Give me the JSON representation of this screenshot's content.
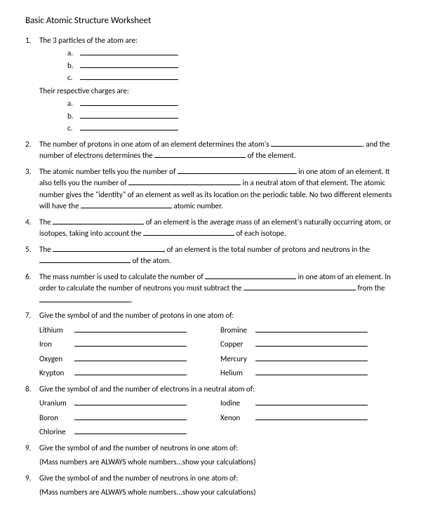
{
  "title": "Basic Atomic Structure Worksheet",
  "q1": {
    "text": "The 3 particles of the atom are:",
    "letters": [
      "a.",
      "b.",
      "c."
    ],
    "text2": "Their respective charges are:"
  },
  "q2": {
    "pre": "The number of protons in one atom of an element determines the atom's ",
    "mid": ", and the number of electrons determines the ",
    "post": " of the element."
  },
  "q3": {
    "a": "The atomic number tells you the number of ",
    "b": " in one atom of an element.  It also tells you the number of ",
    "c": " in a neutral atom of that element.  The atomic number gives the \"identity\" of an element as well as its location on the periodic table.  No two different elements will have the ",
    "d": " atomic number."
  },
  "q4": {
    "a": "The ",
    "b": " of an element is the average mass of an element's naturally occurring atom, or isotopes, taking into account the ",
    "c": " of each isotope."
  },
  "q5": {
    "a": "The ",
    "b": " of an element is the total number of protons and neutrons in the ",
    "c": " of the atom."
  },
  "q6": {
    "a": "The mass number is used to calculate the number of ",
    "b": " in one atom of an element.  In order to calculate the number of neutrons you must subtract the ",
    "c": " from the ",
    "d": "."
  },
  "q7": {
    "text": "Give the symbol of and the number of protons in one atom of:",
    "rows": [
      {
        "l": "Lithium",
        "r": "Bromine"
      },
      {
        "l": "Iron",
        "r": "Copper"
      },
      {
        "l": "Oxygen",
        "r": "Mercury"
      },
      {
        "l": "Krypton",
        "r": "Helium"
      }
    ]
  },
  "q8": {
    "text": "Give the symbol of and the number of electrons in a neutral atom of:",
    "rows": [
      {
        "l": "Uranium",
        "r": "Iodine"
      },
      {
        "l": "Boron",
        "r": "Xenon"
      },
      {
        "l": "Chlorine",
        "r": ""
      }
    ]
  },
  "q9a": {
    "text": "Give the symbol of and the number of neutrons in one atom of:",
    "note": "(Mass numbers are ALWAYS whole numbers...show your calculations)"
  },
  "q9b": {
    "text": "Give the symbol of and the number of neutrons in one atom of:",
    "note": "(Mass numbers are ALWAYS whole numbers...show your calculations)"
  },
  "nums": {
    "n1": "1.",
    "n2": "2.",
    "n3": "3.",
    "n4": "4.",
    "n5": "5.",
    "n6": "6.",
    "n7": "7.",
    "n8": "8.",
    "n9a": "9.",
    "n9b": "9."
  }
}
